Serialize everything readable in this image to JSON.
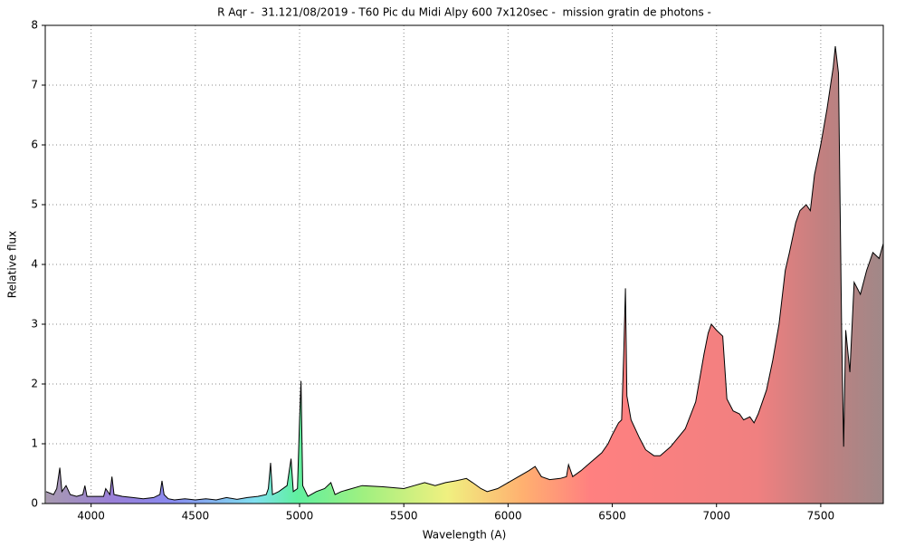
{
  "chart_data": {
    "type": "area",
    "title": "R Aqr -  31.121/08/2019 - T60 Pic du Midi Alpy 600 7x120sec -  mission gratin de photons -",
    "x_label": "Wavelength (A)",
    "y_label": "Relative flux",
    "x": [
      3784,
      3820,
      3835,
      3850,
      3860,
      3880,
      3900,
      3930,
      3960,
      3970,
      3980,
      4020,
      4060,
      4070,
      4090,
      4100,
      4110,
      4150,
      4200,
      4250,
      4300,
      4330,
      4340,
      4350,
      4370,
      4400,
      4450,
      4500,
      4550,
      4600,
      4650,
      4700,
      4750,
      4800,
      4840,
      4850,
      4861,
      4870,
      4900,
      4940,
      4959,
      4970,
      4990,
      5000,
      5007,
      5015,
      5040,
      5080,
      5120,
      5150,
      5170,
      5200,
      5300,
      5400,
      5500,
      5550,
      5600,
      5650,
      5700,
      5750,
      5800,
      5830,
      5870,
      5900,
      5950,
      6000,
      6050,
      6100,
      6130,
      6160,
      6200,
      6250,
      6280,
      6290,
      6310,
      6350,
      6400,
      6450,
      6480,
      6500,
      6530,
      6545,
      6555,
      6563,
      6570,
      6590,
      6630,
      6660,
      6700,
      6730,
      6780,
      6850,
      6900,
      6940,
      6960,
      6975,
      7000,
      7030,
      7050,
      7080,
      7110,
      7130,
      7160,
      7180,
      7200,
      7240,
      7270,
      7300,
      7330,
      7350,
      7380,
      7400,
      7430,
      7450,
      7470,
      7500,
      7530,
      7560,
      7570,
      7585,
      7600,
      7610,
      7620,
      7640,
      7660,
      7690,
      7720,
      7750,
      7780,
      7800
    ],
    "series": [
      {
        "color": "#000000",
        "values": [
          0.2,
          0.15,
          0.25,
          0.6,
          0.2,
          0.3,
          0.15,
          0.12,
          0.15,
          0.3,
          0.12,
          0.12,
          0.12,
          0.25,
          0.15,
          0.45,
          0.15,
          0.12,
          0.1,
          0.08,
          0.1,
          0.15,
          0.38,
          0.15,
          0.08,
          0.06,
          0.08,
          0.06,
          0.08,
          0.06,
          0.1,
          0.07,
          0.1,
          0.12,
          0.15,
          0.25,
          0.68,
          0.15,
          0.2,
          0.3,
          0.75,
          0.2,
          0.25,
          1.4,
          2.05,
          0.3,
          0.12,
          0.2,
          0.25,
          0.35,
          0.15,
          0.2,
          0.3,
          0.28,
          0.25,
          0.3,
          0.35,
          0.3,
          0.35,
          0.38,
          0.42,
          0.35,
          0.25,
          0.2,
          0.25,
          0.35,
          0.45,
          0.55,
          0.62,
          0.45,
          0.4,
          0.42,
          0.45,
          0.65,
          0.45,
          0.55,
          0.7,
          0.85,
          1.0,
          1.15,
          1.35,
          1.4,
          2.5,
          3.6,
          1.8,
          1.4,
          1.1,
          0.9,
          0.8,
          0.8,
          0.95,
          1.25,
          1.7,
          2.5,
          2.85,
          3.0,
          2.9,
          2.8,
          1.75,
          1.55,
          1.5,
          1.4,
          1.45,
          1.35,
          1.5,
          1.9,
          2.4,
          3.0,
          3.9,
          4.2,
          4.7,
          4.9,
          5.0,
          4.9,
          5.5,
          6.0,
          6.6,
          7.3,
          7.65,
          7.2,
          3.0,
          0.95,
          2.9,
          2.2,
          3.7,
          3.5,
          3.9,
          4.2,
          4.1,
          4.35
        ]
      }
    ],
    "xlim": [
      3780,
      7800
    ],
    "ylim": [
      0,
      8
    ],
    "xticks": [
      4000,
      4500,
      5000,
      5500,
      6000,
      6500,
      7000,
      7500
    ],
    "yticks": [
      0,
      1,
      2,
      3,
      4,
      5,
      6,
      7,
      8
    ],
    "grid": true
  }
}
